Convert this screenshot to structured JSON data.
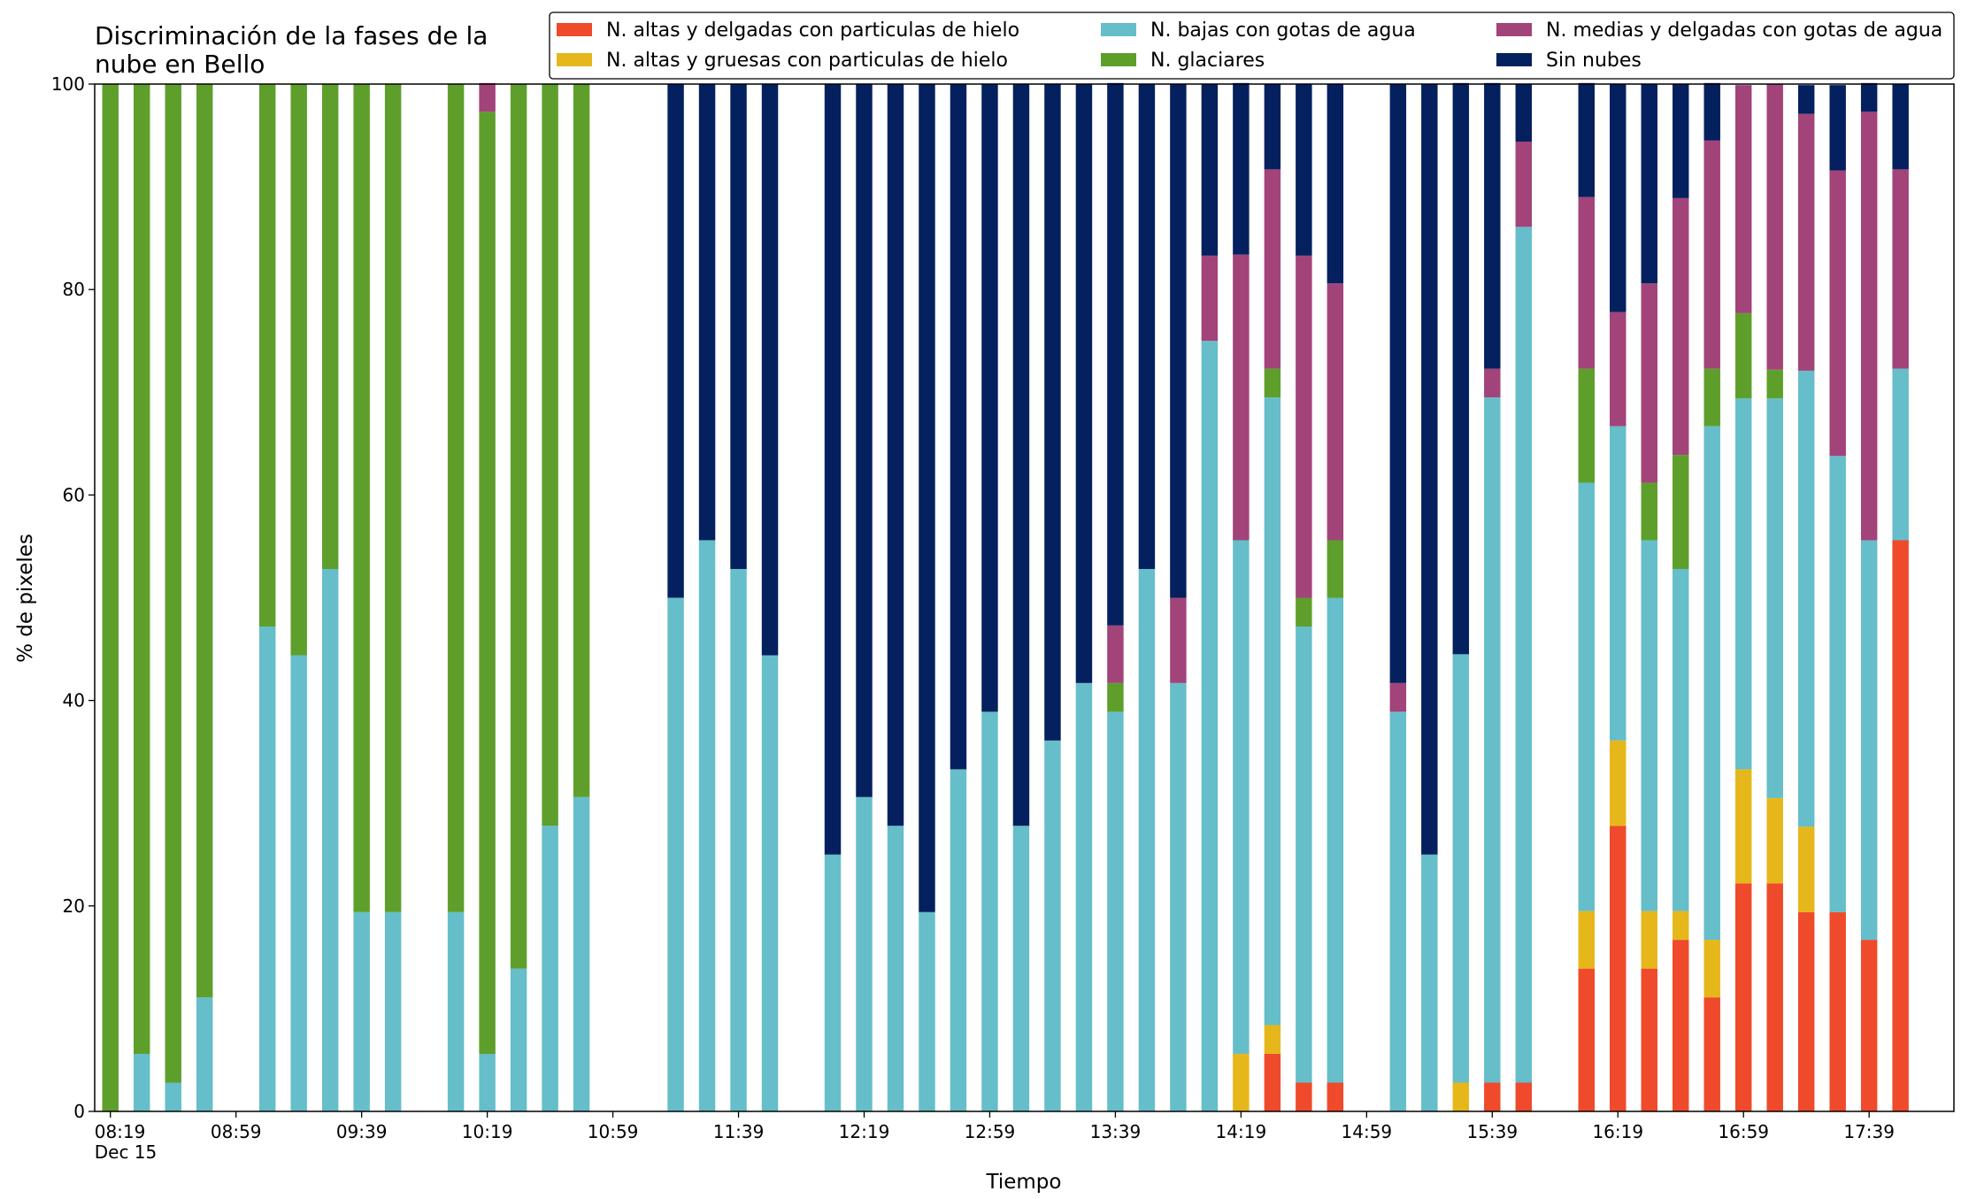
{
  "chart_data": {
    "type": "stacked_bar",
    "title": "Discriminación de la fases de la\nnube en Bello",
    "xlabel": "Tiempo",
    "ylabel": "% de pixeles",
    "x": [
      "08:19",
      "08:29",
      "08:39",
      "08:49",
      "09:09",
      "09:19",
      "09:29",
      "09:39",
      "09:49",
      "10:09",
      "10:19",
      "10:29",
      "10:39",
      "10:49",
      "11:19",
      "11:29",
      "11:39",
      "11:49",
      "12:09",
      "12:19",
      "12:29",
      "12:39",
      "12:49",
      "12:59",
      "13:09",
      "13:19",
      "13:29",
      "13:39",
      "13:49",
      "13:59",
      "14:09",
      "14:19",
      "14:29",
      "14:39",
      "14:49",
      "15:09",
      "15:19",
      "15:29",
      "15:39",
      "15:49",
      "16:09",
      "16:19",
      "16:29",
      "16:39",
      "16:49",
      "16:59",
      "17:09",
      "17:19",
      "17:29",
      "17:39",
      "17:49"
    ],
    "xlim": [
      "08:14",
      "18:06"
    ],
    "xticks": [
      {
        "value": "08:19",
        "label": "08:19\nDec 15"
      },
      "08:59",
      "09:39",
      "10:19",
      "10:59",
      "11:39",
      "12:19",
      "12:59",
      "13:39",
      "14:19",
      "14:59",
      "15:39",
      "16:19",
      "16:59",
      "17:39"
    ],
    "ylim": [
      0,
      100
    ],
    "yticks": [
      0,
      20,
      40,
      60,
      80,
      100
    ],
    "legend": "upper right",
    "series": [
      {
        "name": "N. altas y delgadas con particulas de hielo",
        "color": "#ee4a2b",
        "values": [
          0,
          0,
          0,
          0,
          0,
          0,
          0,
          0,
          0,
          0,
          0,
          0,
          0,
          0,
          0,
          0,
          0,
          0,
          0,
          0,
          0,
          0,
          0,
          0,
          0,
          0,
          0,
          0,
          0,
          0,
          0,
          0,
          5.6,
          2.8,
          2.8,
          0,
          0,
          0,
          2.8,
          2.8,
          13.9,
          27.8,
          13.9,
          16.7,
          11.1,
          22.2,
          22.2,
          19.4,
          19.4,
          16.7,
          55.6
        ]
      },
      {
        "name": "N. altas y gruesas con particulas de hielo",
        "color": "#e6b71b",
        "values": [
          0,
          0,
          0,
          0,
          0,
          0,
          0,
          0,
          0,
          0,
          0,
          0,
          0,
          0,
          0,
          0,
          0,
          0,
          0,
          0,
          0,
          0,
          0,
          0,
          0,
          0,
          0,
          0,
          0,
          0,
          0,
          5.6,
          2.8,
          0,
          0,
          0,
          0,
          2.8,
          0,
          0,
          5.6,
          8.3,
          5.6,
          2.8,
          5.6,
          11.1,
          8.3,
          8.3,
          0,
          0,
          0
        ]
      },
      {
        "name": "N. bajas con gotas de agua",
        "color": "#65bec9",
        "values": [
          0,
          5.6,
          2.8,
          11.1,
          47.2,
          44.4,
          52.8,
          19.4,
          19.4,
          19.4,
          5.6,
          13.9,
          27.8,
          30.6,
          50,
          55.6,
          52.8,
          44.4,
          25,
          30.6,
          27.8,
          19.4,
          33.3,
          38.9,
          27.8,
          36.1,
          41.7,
          38.9,
          52.8,
          41.7,
          75,
          50,
          61.1,
          44.4,
          47.2,
          38.9,
          25,
          41.7,
          66.7,
          83.3,
          41.7,
          30.6,
          36.1,
          33.3,
          50,
          36.1,
          38.9,
          44.4,
          44.4,
          38.9,
          16.7
        ]
      },
      {
        "name": "N. glaciares",
        "color": "#5e9f2c",
        "values": [
          100,
          94.4,
          97.2,
          88.9,
          52.8,
          55.6,
          47.2,
          80.6,
          80.6,
          80.6,
          91.7,
          86.1,
          72.2,
          69.4,
          0,
          0,
          0,
          0,
          0,
          0,
          0,
          0,
          0,
          0,
          0,
          0,
          0,
          2.8,
          0,
          0,
          0,
          0,
          2.8,
          2.8,
          5.6,
          0,
          0,
          0,
          0,
          0,
          11.1,
          0,
          5.6,
          11.1,
          5.6,
          8.3,
          2.8,
          0,
          0,
          0,
          0
        ]
      },
      {
        "name": "N. medias y delgadas con gotas de agua",
        "color": "#a2437a",
        "values": [
          0,
          0,
          0,
          0,
          0,
          0,
          0,
          0,
          0,
          0,
          2.8,
          0,
          0,
          0,
          0,
          0,
          0,
          0,
          0,
          0,
          0,
          0,
          0,
          0,
          0,
          0,
          0,
          5.6,
          0,
          8.3,
          8.3,
          27.8,
          19.4,
          33.3,
          25,
          2.8,
          0,
          0,
          2.8,
          8.3,
          16.7,
          11.1,
          19.4,
          25,
          22.2,
          22.2,
          27.8,
          25,
          27.8,
          41.7,
          19.4
        ]
      },
      {
        "name": "Sin nubes",
        "color": "#04205e",
        "values": [
          0,
          0,
          0,
          0,
          0,
          0,
          0,
          0,
          0,
          0,
          0,
          0,
          0,
          0,
          50,
          44.4,
          47.2,
          55.6,
          75,
          69.4,
          72.2,
          80.6,
          66.7,
          61.1,
          72.2,
          63.9,
          58.3,
          52.8,
          47.2,
          50,
          16.7,
          16.7,
          8.3,
          16.7,
          19.4,
          58.3,
          75,
          55.6,
          27.8,
          5.6,
          11.1,
          22.2,
          19.4,
          11.1,
          5.6,
          0,
          0,
          2.8,
          8.3,
          2.8,
          8.3
        ]
      }
    ]
  }
}
